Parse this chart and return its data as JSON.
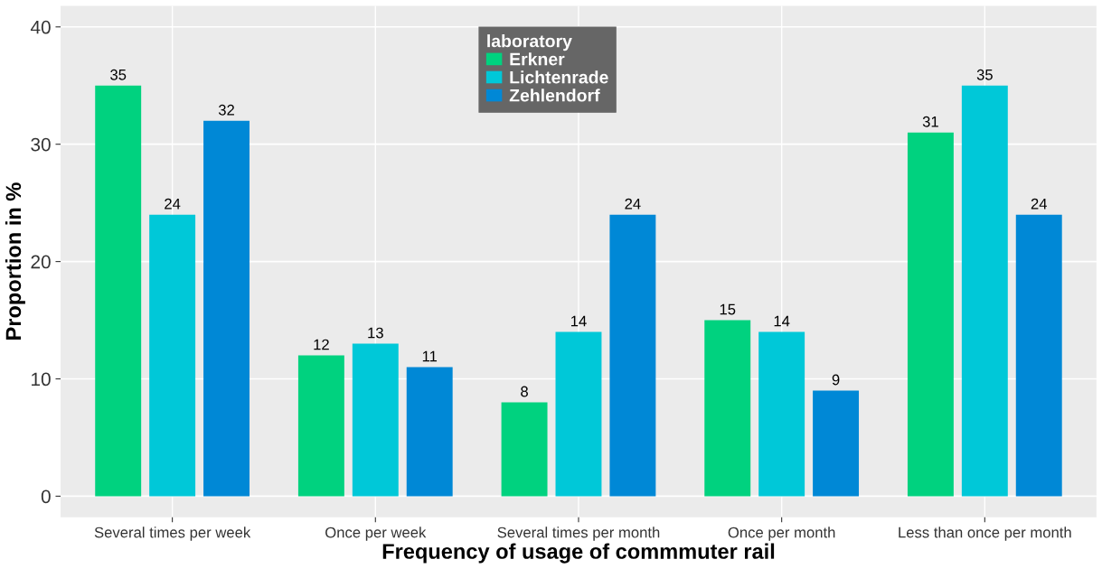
{
  "chart_data": {
    "type": "bar",
    "xlabel": "Frequency of usage of commmuter rail",
    "ylabel": "Proportion in %",
    "legend_title": "laboratory",
    "categories": [
      "Several times per week",
      "Once per week",
      "Several times per month",
      "Once per month",
      "Less than once per month"
    ],
    "series": [
      {
        "name": "Erkner",
        "color": "#00d27f",
        "values": [
          35,
          12,
          8,
          15,
          31
        ]
      },
      {
        "name": "Lichtenrade",
        "color": "#00c8d8",
        "values": [
          24,
          13,
          14,
          14,
          35
        ]
      },
      {
        "name": "Zehlendorf",
        "color": "#0088d6",
        "values": [
          32,
          11,
          24,
          9,
          24
        ]
      }
    ],
    "ylim": [
      -1.8,
      41.8
    ],
    "yticks": [
      0,
      10,
      20,
      30,
      40
    ],
    "grid": true,
    "legend": "top",
    "data_labels": true
  }
}
